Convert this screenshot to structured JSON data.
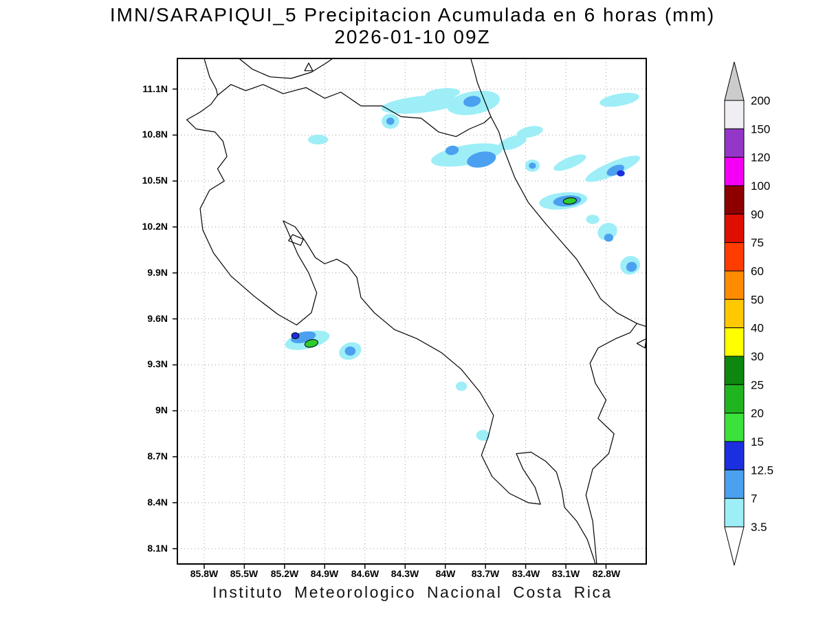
{
  "title": {
    "line1": "IMN/SARAPIQUI_5 Precipitacion Acumulada en 6 horas (mm)",
    "line2": "2026-01-10 09Z"
  },
  "caption": "Instituto Meteorologico Nacional Costa Rica",
  "palette": {
    "cyan": "#9deef7",
    "blue": "#4ba0f0",
    "darkblue": "#1c2fe0",
    "green": "#2ecc2e"
  },
  "map": {
    "lon_min": -86.0,
    "lon_max": -82.5,
    "lat_min": 8.0,
    "lat_max": 11.3,
    "grid_color": "#9e9e9e",
    "lon_ticks": [
      {
        "lon": -85.8,
        "label": "85.8W"
      },
      {
        "lon": -85.5,
        "label": "85.5W"
      },
      {
        "lon": -85.2,
        "label": "85.2W"
      },
      {
        "lon": -84.9,
        "label": "84.9W"
      },
      {
        "lon": -84.6,
        "label": "84.6W"
      },
      {
        "lon": -84.3,
        "label": "84.3W"
      },
      {
        "lon": -84.0,
        "label": "84W"
      },
      {
        "lon": -83.7,
        "label": "83.7W"
      },
      {
        "lon": -83.4,
        "label": "83.4W"
      },
      {
        "lon": -83.1,
        "label": "83.1W"
      },
      {
        "lon": -82.8,
        "label": "82.8W"
      }
    ],
    "lat_ticks": [
      {
        "lat": 11.1,
        "label": "11.1N"
      },
      {
        "lat": 10.8,
        "label": "10.8N"
      },
      {
        "lat": 10.5,
        "label": "10.5N"
      },
      {
        "lat": 10.2,
        "label": "10.2N"
      },
      {
        "lat": 9.9,
        "label": "9.9N"
      },
      {
        "lat": 9.6,
        "label": "9.6N"
      },
      {
        "lat": 9.3,
        "label": "9.3N"
      },
      {
        "lat": 9.0,
        "label": "9N"
      },
      {
        "lat": 8.7,
        "label": "8.7N"
      },
      {
        "lat": 8.4,
        "label": "8.4N"
      },
      {
        "lat": 8.1,
        "label": "8.1N"
      }
    ],
    "coastlines": [
      {
        "name": "nicaragua-pacific-coast",
        "closed": false,
        "pts": [
          [
            -85.8,
            11.3
          ],
          [
            -85.76,
            11.18
          ],
          [
            -85.71,
            11.1
          ],
          [
            -85.7,
            11.06
          ]
        ]
      },
      {
        "name": "nicaragua-border-san-juan-river",
        "closed": false,
        "pts": [
          [
            -85.7,
            11.06
          ],
          [
            -85.6,
            11.13
          ],
          [
            -85.49,
            11.09
          ],
          [
            -85.36,
            11.13
          ],
          [
            -85.21,
            11.07
          ],
          [
            -85.04,
            11.11
          ],
          [
            -84.9,
            11.04
          ],
          [
            -84.78,
            11.08
          ],
          [
            -84.63,
            10.99
          ],
          [
            -84.47,
            10.99
          ],
          [
            -84.33,
            10.92
          ],
          [
            -84.18,
            10.91
          ],
          [
            -84.05,
            10.82
          ],
          [
            -83.92,
            10.79
          ],
          [
            -83.82,
            10.84
          ],
          [
            -83.71,
            10.88
          ],
          [
            -83.66,
            10.92
          ]
        ]
      },
      {
        "name": "nicaragua-caribbean-coast",
        "closed": false,
        "pts": [
          [
            -83.66,
            10.92
          ],
          [
            -83.71,
            11.03
          ],
          [
            -83.76,
            11.14
          ],
          [
            -83.79,
            11.24
          ],
          [
            -83.81,
            11.3
          ]
        ]
      },
      {
        "name": "lake-nicaragua-shore",
        "closed": false,
        "pts": [
          [
            -85.54,
            11.3
          ],
          [
            -85.44,
            11.23
          ],
          [
            -85.31,
            11.18
          ],
          [
            -85.15,
            11.17
          ],
          [
            -85.0,
            11.21
          ],
          [
            -84.89,
            11.27
          ],
          [
            -84.84,
            11.3
          ]
        ]
      },
      {
        "name": "lake-island",
        "closed": true,
        "pts": [
          [
            -85.05,
            11.22
          ],
          [
            -84.99,
            11.22
          ],
          [
            -85.02,
            11.27
          ]
        ]
      },
      {
        "name": "costa-rica-pacific-coast",
        "closed": false,
        "pts": [
          [
            -85.7,
            11.06
          ],
          [
            -85.75,
            11.0
          ],
          [
            -85.83,
            10.95
          ],
          [
            -85.93,
            10.9
          ],
          [
            -85.86,
            10.84
          ],
          [
            -85.72,
            10.82
          ],
          [
            -85.66,
            10.76
          ],
          [
            -85.63,
            10.66
          ],
          [
            -85.7,
            10.58
          ],
          [
            -85.65,
            10.5
          ],
          [
            -85.76,
            10.44
          ],
          [
            -85.83,
            10.32
          ],
          [
            -85.81,
            10.18
          ],
          [
            -85.73,
            10.03
          ],
          [
            -85.6,
            9.88
          ],
          [
            -85.43,
            9.75
          ],
          [
            -85.25,
            9.63
          ],
          [
            -85.11,
            9.56
          ],
          [
            -85.0,
            9.64
          ],
          [
            -84.96,
            9.77
          ],
          [
            -85.02,
            9.9
          ],
          [
            -85.1,
            10.02
          ],
          [
            -85.16,
            10.14
          ],
          [
            -85.21,
            10.24
          ],
          [
            -85.12,
            10.2
          ],
          [
            -85.04,
            10.1
          ],
          [
            -84.97,
            10.0
          ],
          [
            -84.9,
            9.96
          ],
          [
            -84.81,
            9.99
          ],
          [
            -84.73,
            9.95
          ],
          [
            -84.66,
            9.87
          ],
          [
            -84.63,
            9.74
          ],
          [
            -84.53,
            9.64
          ],
          [
            -84.38,
            9.53
          ],
          [
            -84.21,
            9.47
          ],
          [
            -84.03,
            9.38
          ],
          [
            -83.88,
            9.27
          ],
          [
            -83.74,
            9.12
          ],
          [
            -83.64,
            8.97
          ],
          [
            -83.68,
            8.83
          ],
          [
            -83.73,
            8.71
          ],
          [
            -83.65,
            8.57
          ],
          [
            -83.52,
            8.46
          ],
          [
            -83.38,
            8.4
          ],
          [
            -83.29,
            8.39
          ],
          [
            -83.33,
            8.5
          ],
          [
            -83.42,
            8.62
          ],
          [
            -83.47,
            8.72
          ],
          [
            -83.36,
            8.73
          ],
          [
            -83.25,
            8.67
          ],
          [
            -83.17,
            8.6
          ],
          [
            -83.13,
            8.48
          ],
          [
            -83.11,
            8.37
          ],
          [
            -83.02,
            8.28
          ],
          [
            -82.94,
            8.16
          ],
          [
            -82.89,
            8.03
          ],
          [
            -82.88,
            8.0
          ]
        ]
      },
      {
        "name": "panama-border",
        "closed": false,
        "pts": [
          [
            -82.57,
            9.57
          ],
          [
            -82.62,
            9.51
          ],
          [
            -82.73,
            9.47
          ],
          [
            -82.86,
            9.41
          ],
          [
            -82.92,
            9.31
          ],
          [
            -82.88,
            9.18
          ],
          [
            -82.8,
            9.07
          ],
          [
            -82.86,
            8.95
          ],
          [
            -82.74,
            8.85
          ],
          [
            -82.78,
            8.72
          ],
          [
            -82.9,
            8.62
          ],
          [
            -82.95,
            8.45
          ],
          [
            -82.9,
            8.28
          ],
          [
            -82.88,
            8.1
          ],
          [
            -82.87,
            8.0
          ]
        ]
      },
      {
        "name": "caribbean-coast",
        "closed": false,
        "pts": [
          [
            -83.66,
            10.92
          ],
          [
            -83.6,
            10.82
          ],
          [
            -83.56,
            10.7
          ],
          [
            -83.48,
            10.52
          ],
          [
            -83.38,
            10.36
          ],
          [
            -83.25,
            10.22
          ],
          [
            -83.1,
            10.07
          ],
          [
            -83.02,
            9.99
          ],
          [
            -82.92,
            9.85
          ],
          [
            -82.84,
            9.73
          ],
          [
            -82.72,
            9.64
          ],
          [
            -82.57,
            9.57
          ],
          [
            -82.5,
            9.55
          ]
        ]
      },
      {
        "name": "isla-chira",
        "closed": true,
        "pts": [
          [
            -85.17,
            10.11
          ],
          [
            -85.08,
            10.08
          ],
          [
            -85.06,
            10.12
          ],
          [
            -85.14,
            10.15
          ]
        ]
      },
      {
        "name": "bocas-island",
        "closed": true,
        "pts": [
          [
            -82.57,
            9.44
          ],
          [
            -82.51,
            9.41
          ],
          [
            -82.5,
            9.47
          ]
        ]
      }
    ],
    "features": [
      {
        "lon": -84.18,
        "lat": 11.0,
        "rx": 0.3,
        "ry": 0.055,
        "rot": -6,
        "color": "cyan"
      },
      {
        "lon": -84.02,
        "lat": 11.07,
        "rx": 0.13,
        "ry": 0.035,
        "rot": -6,
        "color": "cyan"
      },
      {
        "lon": -83.79,
        "lat": 11.01,
        "rx": 0.2,
        "ry": 0.075,
        "rot": -10,
        "color": "cyan"
      },
      {
        "lon": -83.8,
        "lat": 11.02,
        "rx": 0.065,
        "ry": 0.035,
        "rot": -10,
        "color": "blue"
      },
      {
        "lon": -82.7,
        "lat": 11.03,
        "rx": 0.15,
        "ry": 0.04,
        "rot": -10,
        "color": "cyan"
      },
      {
        "lon": -84.41,
        "lat": 10.89,
        "rx": 0.065,
        "ry": 0.05,
        "rot": 0,
        "color": "cyan"
      },
      {
        "lon": -84.41,
        "lat": 10.89,
        "rx": 0.03,
        "ry": 0.024,
        "rot": 0,
        "color": "blue"
      },
      {
        "lon": -84.95,
        "lat": 10.77,
        "rx": 0.075,
        "ry": 0.032,
        "rot": 0,
        "color": "cyan"
      },
      {
        "lon": -83.84,
        "lat": 10.67,
        "rx": 0.27,
        "ry": 0.065,
        "rot": -10,
        "color": "cyan"
      },
      {
        "lon": -83.95,
        "lat": 10.7,
        "rx": 0.05,
        "ry": 0.03,
        "rot": -10,
        "color": "blue"
      },
      {
        "lon": -83.73,
        "lat": 10.64,
        "rx": 0.11,
        "ry": 0.05,
        "rot": -12,
        "color": "blue"
      },
      {
        "lon": -83.5,
        "lat": 10.75,
        "rx": 0.11,
        "ry": 0.04,
        "rot": -18,
        "color": "cyan"
      },
      {
        "lon": -83.37,
        "lat": 10.82,
        "rx": 0.1,
        "ry": 0.035,
        "rot": -12,
        "color": "cyan"
      },
      {
        "lon": -83.35,
        "lat": 10.6,
        "rx": 0.055,
        "ry": 0.04,
        "rot": 0,
        "color": "cyan"
      },
      {
        "lon": -83.35,
        "lat": 10.6,
        "rx": 0.027,
        "ry": 0.02,
        "rot": 0,
        "color": "blue"
      },
      {
        "lon": -83.07,
        "lat": 10.62,
        "rx": 0.13,
        "ry": 0.035,
        "rot": -22,
        "color": "cyan"
      },
      {
        "lon": -82.75,
        "lat": 10.58,
        "rx": 0.22,
        "ry": 0.045,
        "rot": -23,
        "color": "cyan"
      },
      {
        "lon": -82.73,
        "lat": 10.57,
        "rx": 0.07,
        "ry": 0.03,
        "rot": -23,
        "color": "blue"
      },
      {
        "lon": -82.69,
        "lat": 10.55,
        "rx": 0.03,
        "ry": 0.02,
        "rot": 0,
        "color": "darkblue"
      },
      {
        "lon": -83.12,
        "lat": 10.37,
        "rx": 0.18,
        "ry": 0.055,
        "rot": -6,
        "color": "cyan"
      },
      {
        "lon": -83.09,
        "lat": 10.37,
        "rx": 0.105,
        "ry": 0.035,
        "rot": -6,
        "color": "blue"
      },
      {
        "lon": -83.07,
        "lat": 10.37,
        "rx": 0.05,
        "ry": 0.02,
        "rot": -6,
        "color": "green",
        "stroke": true
      },
      {
        "lon": -82.9,
        "lat": 10.25,
        "rx": 0.05,
        "ry": 0.03,
        "rot": 0,
        "color": "cyan"
      },
      {
        "lon": -82.79,
        "lat": 10.17,
        "rx": 0.075,
        "ry": 0.055,
        "rot": -25,
        "color": "cyan"
      },
      {
        "lon": -82.78,
        "lat": 10.13,
        "rx": 0.034,
        "ry": 0.026,
        "rot": 0,
        "color": "blue"
      },
      {
        "lon": -82.62,
        "lat": 9.95,
        "rx": 0.075,
        "ry": 0.06,
        "rot": -20,
        "color": "cyan"
      },
      {
        "lon": -82.61,
        "lat": 9.94,
        "rx": 0.04,
        "ry": 0.032,
        "rot": -20,
        "color": "blue"
      },
      {
        "lon": -85.03,
        "lat": 9.46,
        "rx": 0.17,
        "ry": 0.055,
        "rot": -13,
        "color": "cyan"
      },
      {
        "lon": -85.06,
        "lat": 9.48,
        "rx": 0.095,
        "ry": 0.035,
        "rot": -13,
        "color": "blue"
      },
      {
        "lon": -85.12,
        "lat": 9.49,
        "rx": 0.027,
        "ry": 0.02,
        "rot": 0,
        "color": "darkblue",
        "stroke": true
      },
      {
        "lon": -85.0,
        "lat": 9.44,
        "rx": 0.05,
        "ry": 0.024,
        "rot": -13,
        "color": "green",
        "stroke": true
      },
      {
        "lon": -84.71,
        "lat": 9.39,
        "rx": 0.085,
        "ry": 0.055,
        "rot": -20,
        "color": "cyan"
      },
      {
        "lon": -84.71,
        "lat": 9.39,
        "rx": 0.04,
        "ry": 0.03,
        "rot": 0,
        "color": "blue"
      },
      {
        "lon": -83.88,
        "lat": 9.16,
        "rx": 0.042,
        "ry": 0.03,
        "rot": 0,
        "color": "cyan"
      },
      {
        "lon": -83.72,
        "lat": 8.84,
        "rx": 0.05,
        "ry": 0.035,
        "rot": 0,
        "color": "cyan"
      }
    ]
  },
  "colorbar": {
    "labels": [
      "200",
      "150",
      "120",
      "100",
      "90",
      "75",
      "60",
      "50",
      "40",
      "30",
      "25",
      "20",
      "15",
      "12.5",
      "7",
      "3.5"
    ],
    "band_colors_top_to_bottom": [
      "#cccccc",
      "#f1eef3",
      "#9437c8",
      "#f400f4",
      "#8e0000",
      "#de0f00",
      "#ff3c00",
      "#ff8c00",
      "#ffc800",
      "#ffff00",
      "#0e870e",
      "#21b421",
      "#3ce13c",
      "#1c2fe0",
      "#4ba0f0",
      "#9deef7",
      "#ffffff"
    ]
  },
  "chart_data": {
    "type": "heatmap",
    "title": "IMN/SARAPIQUI_5 Precipitacion Acumulada en 6 horas (mm)",
    "subtitle": "2026-01-10 09Z",
    "units": "mm",
    "x_tick_labels": [
      "85.8W",
      "85.5W",
      "85.2W",
      "84.9W",
      "84.6W",
      "84.3W",
      "84W",
      "83.7W",
      "83.4W",
      "83.1W",
      "82.8W"
    ],
    "y_tick_labels": [
      "11.1N",
      "10.8N",
      "10.5N",
      "10.2N",
      "9.9N",
      "9.6N",
      "9.3N",
      "9N",
      "8.7N",
      "8.4N",
      "8.1N"
    ],
    "legend_levels_mm": [
      3.5,
      7,
      12.5,
      15,
      20,
      25,
      30,
      40,
      50,
      60,
      75,
      90,
      100,
      120,
      150,
      200
    ],
    "legend_position": "right",
    "grid": "dotted"
  }
}
